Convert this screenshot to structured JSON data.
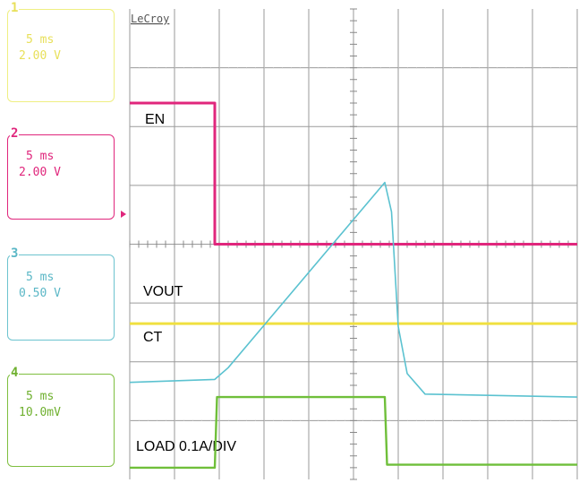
{
  "channels": [
    {
      "num": "1",
      "time": "5 ms",
      "volt": "2.00 V",
      "color": "#efef82"
    },
    {
      "num": "2",
      "time": "5 ms",
      "volt": "2.00 V",
      "color": "#e0267c"
    },
    {
      "num": "3",
      "time": "5 ms",
      "volt": "0.50 V",
      "color": "#6cc3cf"
    },
    {
      "num": "4",
      "time": "5 ms",
      "volt": "10.0mV",
      "color": "#7fbf3f"
    }
  ],
  "brand": "LeCroy",
  "trace_colors": {
    "EN": "#e0267c",
    "VOUT": "#f0e040",
    "CT": "#5bc2d0",
    "LOAD": "#6fbf3a"
  },
  "chart_data": {
    "type": "line",
    "xlabel": "",
    "ylabel": "",
    "x_unit": "div",
    "xlim": [
      0,
      10
    ],
    "ylim": [
      -4,
      4
    ],
    "grid": true,
    "series": [
      {
        "name": "EN",
        "points": [
          [
            0,
            2.4
          ],
          [
            1.9,
            2.4
          ],
          [
            1.9,
            0
          ],
          [
            10,
            0
          ]
        ]
      },
      {
        "name": "VOUT",
        "points": [
          [
            0,
            -1.35
          ],
          [
            10,
            -1.35
          ]
        ]
      },
      {
        "name": "CT",
        "points": [
          [
            0,
            -2.35
          ],
          [
            1.9,
            -2.3
          ],
          [
            2.2,
            -2.1
          ],
          [
            5.7,
            1.05
          ],
          [
            5.85,
            0.55
          ],
          [
            6.0,
            -1.4
          ],
          [
            6.2,
            -2.2
          ],
          [
            6.6,
            -2.55
          ],
          [
            10,
            -2.6
          ]
        ]
      },
      {
        "name": "LOAD 0.1A/DIV",
        "points": [
          [
            0,
            -3.8
          ],
          [
            1.9,
            -3.8
          ],
          [
            1.95,
            -2.6
          ],
          [
            5.7,
            -2.6
          ],
          [
            5.75,
            -3.75
          ],
          [
            10,
            -3.75
          ]
        ]
      }
    ]
  }
}
